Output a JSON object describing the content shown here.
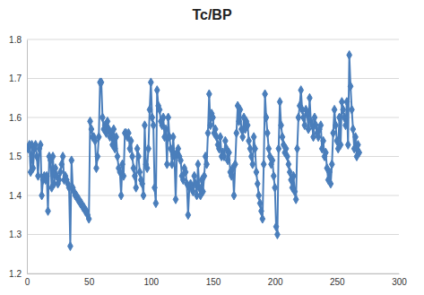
{
  "chart_data": {
    "type": "line",
    "title": "Tc/BP",
    "marker": "diamond",
    "color": "#4a7ebb",
    "grid": true,
    "xlim": [
      0,
      300
    ],
    "xticks": [
      0,
      50,
      100,
      150,
      200,
      250,
      300
    ],
    "ylim": [
      1.2,
      1.8
    ],
    "yticks": [
      1.2,
      1.3,
      1.4,
      1.5,
      1.6,
      1.7,
      1.8
    ],
    "x": [
      1,
      2,
      3,
      4,
      5,
      6,
      7,
      8,
      9,
      10,
      11,
      12,
      13,
      14,
      15,
      16,
      17,
      18,
      19,
      20,
      21,
      22,
      23,
      24,
      25,
      26,
      27,
      28,
      29,
      30,
      31,
      32,
      33,
      34,
      35,
      36,
      37,
      38,
      39,
      40,
      41,
      42,
      43,
      44,
      45,
      46,
      47,
      48,
      49,
      50,
      51,
      52,
      53,
      54,
      55,
      56,
      57,
      58,
      59,
      60,
      61,
      62,
      63,
      64,
      65,
      66,
      67,
      68,
      69,
      70,
      71,
      72,
      73,
      74,
      75,
      76,
      77,
      78,
      79,
      80,
      81,
      82,
      83,
      84,
      85,
      86,
      87,
      88,
      89,
      90,
      91,
      92,
      93,
      94,
      95,
      96,
      97,
      98,
      99,
      100,
      101,
      102,
      103,
      104,
      105,
      106,
      107,
      108,
      109,
      110,
      111,
      112,
      113,
      114,
      115,
      116,
      117,
      118,
      119,
      120,
      121,
      122,
      123,
      124,
      125,
      126,
      127,
      128,
      129,
      130,
      131,
      132,
      133,
      134,
      135,
      136,
      137,
      138,
      139,
      140,
      141,
      142,
      143,
      144,
      145,
      146,
      147,
      148,
      149,
      150,
      151,
      152,
      153,
      154,
      155,
      156,
      157,
      158,
      159,
      160,
      161,
      162,
      163,
      164,
      165,
      166,
      167,
      168,
      169,
      170,
      171,
      172,
      173,
      174,
      175,
      176,
      177,
      178,
      179,
      180,
      181,
      182,
      183,
      184,
      185,
      186,
      187,
      188,
      189,
      190,
      191,
      192,
      193,
      194,
      195,
      196,
      197,
      198,
      199,
      200,
      201,
      202,
      203,
      204,
      205,
      206,
      207,
      208,
      209,
      210,
      211,
      212,
      213,
      214,
      215,
      216,
      217,
      218,
      219,
      220,
      221,
      222,
      223,
      224,
      225,
      226,
      227,
      228,
      229,
      230,
      231,
      232,
      233,
      234,
      235,
      236,
      237,
      238,
      239,
      240,
      241,
      242,
      243,
      244,
      245,
      246,
      247,
      248,
      249,
      250,
      251,
      252,
      253,
      254,
      255,
      256,
      257,
      258,
      259,
      260,
      261,
      262,
      263,
      264,
      265,
      266,
      267,
      268
    ],
    "values": [
      1.52,
      1.53,
      1.46,
      1.53,
      1.47,
      1.52,
      1.53,
      1.5,
      1.45,
      1.52,
      1.53,
      1.4,
      1.44,
      1.45,
      1.44,
      1.45,
      1.36,
      1.5,
      1.49,
      1.42,
      1.5,
      1.43,
      1.47,
      1.45,
      1.43,
      1.44,
      1.46,
      1.48,
      1.5,
      1.44,
      1.45,
      1.44,
      1.43,
      1.42,
      1.27,
      1.49,
      1.42,
      1.41,
      1.4,
      1.4,
      1.39,
      1.39,
      1.38,
      1.38,
      1.37,
      1.37,
      1.36,
      1.36,
      1.35,
      1.34,
      1.59,
      1.57,
      1.55,
      1.55,
      1.54,
      1.47,
      1.5,
      1.55,
      1.69,
      1.69,
      1.6,
      1.57,
      1.58,
      1.56,
      1.59,
      1.57,
      1.55,
      1.56,
      1.53,
      1.57,
      1.52,
      1.55,
      1.5,
      1.47,
      1.46,
      1.4,
      1.48,
      1.45,
      1.56,
      1.56,
      1.55,
      1.56,
      1.52,
      1.54,
      1.5,
      1.47,
      1.45,
      1.42,
      1.52,
      1.5,
      1.46,
      1.44,
      1.43,
      1.4,
      1.58,
      1.48,
      1.47,
      1.52,
      1.62,
      1.69,
      1.6,
      1.58,
      1.42,
      1.38,
      1.67,
      1.63,
      1.62,
      1.59,
      1.58,
      1.6,
      1.55,
      1.57,
      1.48,
      1.6,
      1.55,
      1.52,
      1.48,
      1.55,
      1.5,
      1.39,
      1.51,
      1.52,
      1.5,
      1.49,
      1.45,
      1.44,
      1.47,
      1.46,
      1.43,
      1.35,
      1.42,
      1.43,
      1.42,
      1.41,
      1.45,
      1.43,
      1.4,
      1.48,
      1.42,
      1.4,
      1.44,
      1.41,
      1.45,
      1.5,
      1.48,
      1.56,
      1.66,
      1.58,
      1.61,
      1.6,
      1.56,
      1.57,
      1.55,
      1.53,
      1.52,
      1.55,
      1.5,
      1.51,
      1.5,
      1.54,
      1.52,
      1.49,
      1.51,
      1.46,
      1.45,
      1.47,
      1.4,
      1.48,
      1.56,
      1.63,
      1.59,
      1.62,
      1.57,
      1.55,
      1.6,
      1.57,
      1.59,
      1.58,
      1.54,
      1.52,
      1.5,
      1.48,
      1.55,
      1.52,
      1.46,
      1.43,
      1.4,
      1.38,
      1.36,
      1.34,
      1.48,
      1.66,
      1.6,
      1.56,
      1.52,
      1.5,
      1.48,
      1.49,
      1.45,
      1.42,
      1.32,
      1.3,
      1.52,
      1.64,
      1.58,
      1.55,
      1.53,
      1.51,
      1.52,
      1.5,
      1.48,
      1.46,
      1.44,
      1.42,
      1.45,
      1.41,
      1.39,
      1.52,
      1.6,
      1.63,
      1.67,
      1.62,
      1.6,
      1.58,
      1.62,
      1.61,
      1.57,
      1.65,
      1.59,
      1.58,
      1.55,
      1.6,
      1.58,
      1.56,
      1.55,
      1.57,
      1.58,
      1.52,
      1.54,
      1.5,
      1.51,
      1.47,
      1.44,
      1.46,
      1.43,
      1.48,
      1.56,
      1.62,
      1.58,
      1.54,
      1.52,
      1.6,
      1.53,
      1.64,
      1.62,
      1.6,
      1.58,
      1.64,
      1.53,
      1.76,
      1.68,
      1.62,
      1.57,
      1.52,
      1.55,
      1.5,
      1.53,
      1.51
    ]
  }
}
